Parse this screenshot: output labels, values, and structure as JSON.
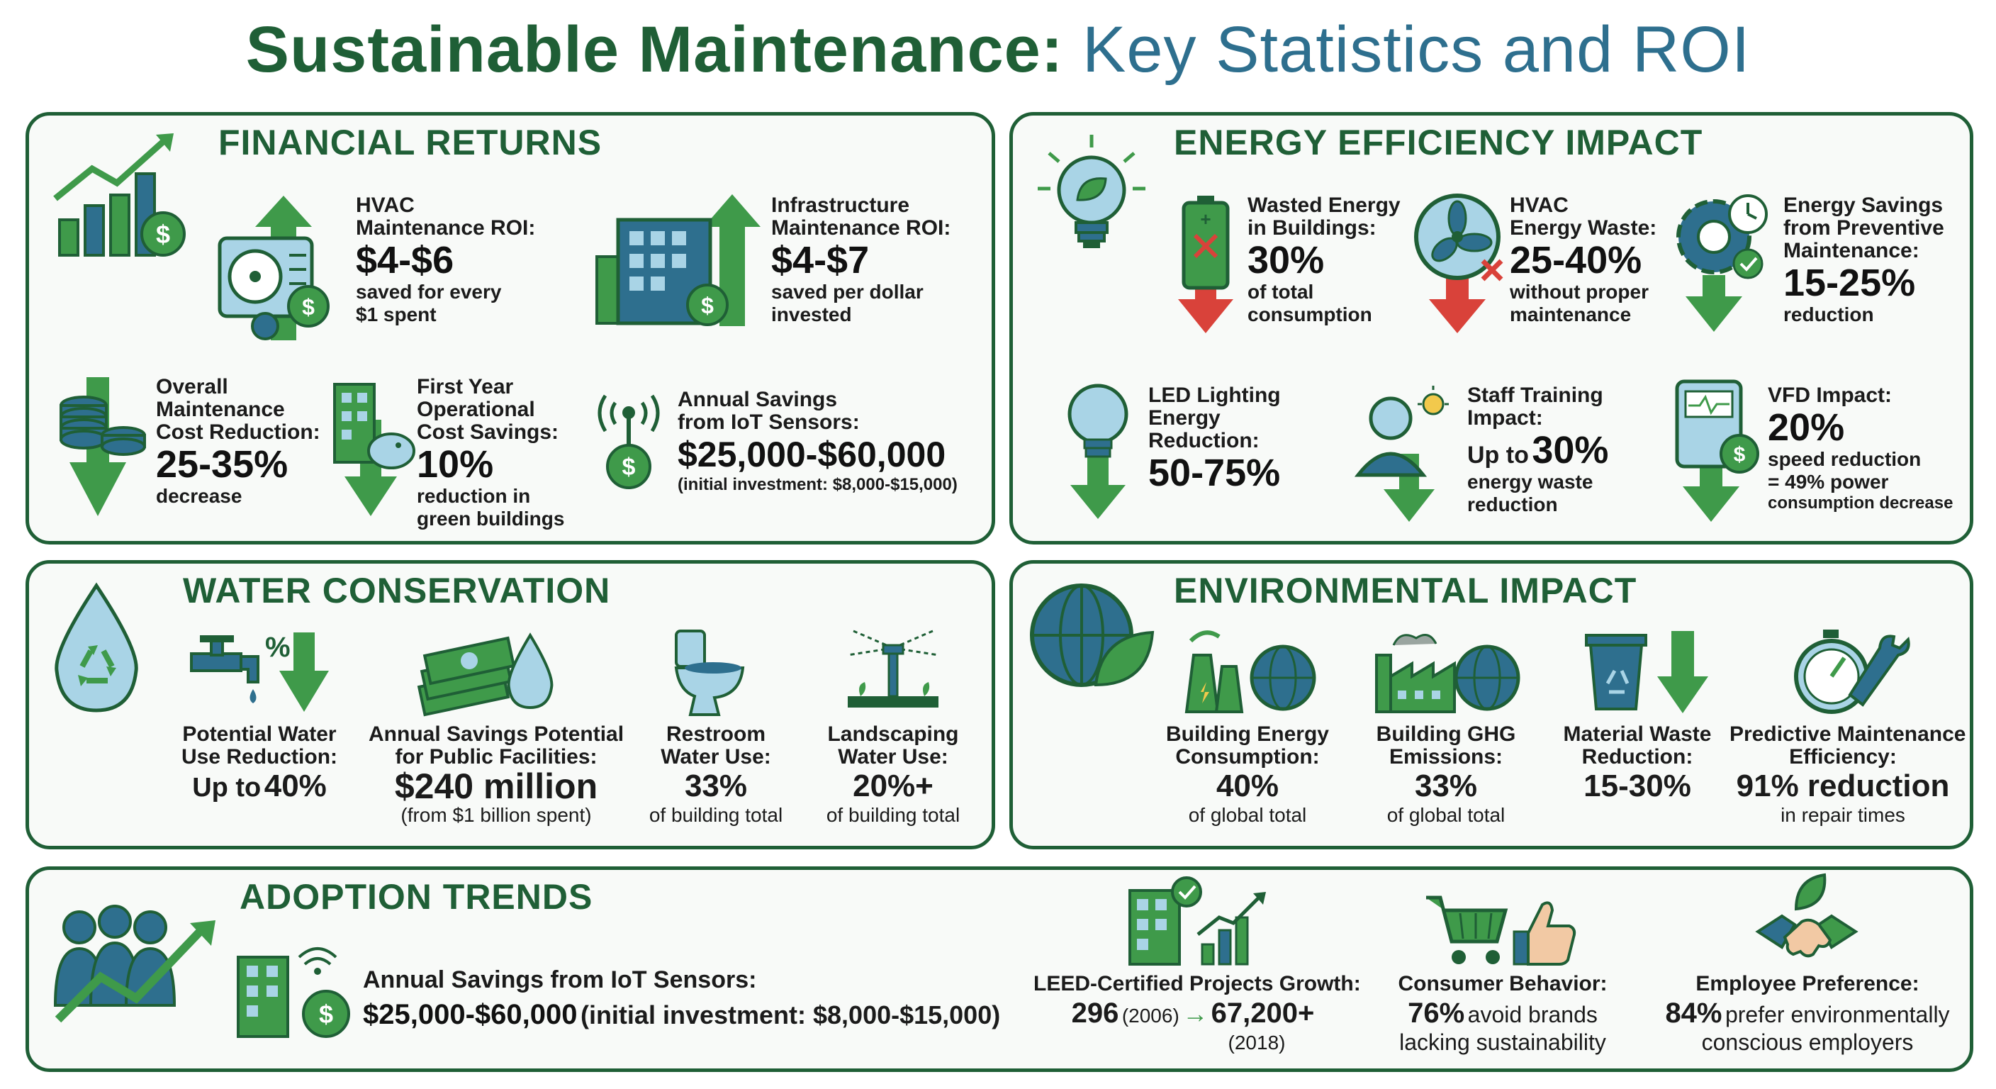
{
  "title": {
    "part1": "Sustainable Maintenance:",
    "part2": "Key Statistics and ROI"
  },
  "financial": {
    "title": "FINANCIAL RETURNS",
    "hvac": {
      "label1": "HVAC",
      "label2": "Maintenance ROI:",
      "value": "$4-$6",
      "sub1": "saved for every",
      "sub2": "$1 spent"
    },
    "infra": {
      "label1": "Infrastructure",
      "label2": "Maintenance ROI:",
      "value": "$4-$7",
      "sub1": "saved per dollar",
      "sub2": "invested"
    },
    "overall": {
      "label1": "Overall",
      "label2": "Maintenance",
      "label3": "Cost Reduction:",
      "value": "25-35%",
      "sub1": "decrease"
    },
    "firstyear": {
      "label1": "First Year",
      "label2": "Operational",
      "label3": "Cost Savings:",
      "value": "10%",
      "sub1": "reduction in",
      "sub2": "green buildings"
    },
    "iot": {
      "label1": "Annual Savings",
      "label2": "from IoT Sensors:",
      "value": "$25,000-$60,000",
      "sub1": "(initial investment: $8,000-$15,000)"
    }
  },
  "energy": {
    "title": "ENERGY EFFICIENCY IMPACT",
    "wasted": {
      "label1": "Wasted Energy",
      "label2": "in Buildings:",
      "value": "30%",
      "sub1": "of total",
      "sub2": "consumption"
    },
    "hvacwaste": {
      "label1": "HVAC",
      "label2": "Energy Waste:",
      "value": "25-40%",
      "sub1": "without proper",
      "sub2": "maintenance"
    },
    "preventive": {
      "label1": "Energy Savings",
      "label2": "from Preventive",
      "label3": "Maintenance:",
      "value": "15-25%",
      "sub1": "reduction"
    },
    "led": {
      "label1": "LED Lighting",
      "label2": "Energy",
      "label3": "Reduction:",
      "value": "50-75%"
    },
    "training": {
      "label1": "Staff Training",
      "label2": "Impact:",
      "prefix": "Up to",
      "value": "30%",
      "sub1": "energy waste",
      "sub2": "reduction"
    },
    "vfd": {
      "label1": "VFD Impact:",
      "value": "20%",
      "sub1": "speed reduction",
      "sub2": "= 49% power",
      "sub3": "consumption decrease"
    }
  },
  "water": {
    "title": "WATER CONSERVATION",
    "potential": {
      "label1": "Potential Water",
      "label2": "Use Reduction:",
      "prefix": "Up to",
      "value": "40%"
    },
    "public": {
      "label1": "Annual Savings Potential",
      "label2": "for Public Facilities:",
      "value": "$240 million",
      "sub1": "(from $1 billion spent)"
    },
    "restroom": {
      "label1": "Restroom",
      "label2": "Water Use:",
      "value": "33%",
      "sub1": "of building total"
    },
    "landscape": {
      "label1": "Landscaping",
      "label2": "Water Use:",
      "value": "20%+",
      "sub1": "of building total"
    }
  },
  "environment": {
    "title": "ENVIRONMENTAL IMPACT",
    "energycons": {
      "label1": "Building Energy",
      "label2": "Consumption:",
      "value": "40%",
      "sub1": "of global total"
    },
    "ghg": {
      "label1": "Building GHG",
      "label2": "Emissions:",
      "value": "33%",
      "sub1": "of global total"
    },
    "material": {
      "label1": "Material Waste",
      "label2": "Reduction:",
      "value": "15-30%"
    },
    "predictive": {
      "label1": "Predictive Maintenance",
      "label2": "Efficiency:",
      "value": "91% reduction",
      "sub1": "in repair times"
    }
  },
  "adoption": {
    "title": "ADOPTION TRENDS",
    "iot": {
      "label": "Annual Savings from IoT Sensors:",
      "value": "$25,000-$60,000",
      "note": "(initial investment: $8,000-$15,000)"
    },
    "leed": {
      "label": "LEED-Certified Projects Growth:",
      "v1": "296",
      "y1": "(2006)",
      "arrow": "→",
      "v2": "67,200+",
      "y2": "(2018)"
    },
    "consumer": {
      "label": "Consumer Behavior:",
      "value": "76%",
      "sub1": "avoid brands",
      "sub2": "lacking sustainability"
    },
    "employee": {
      "label": "Employee Preference:",
      "value": "84%",
      "sub1": "prefer environmentally",
      "sub2": "conscious employers"
    }
  },
  "colors": {
    "dark_green": "#1f5f36",
    "green": "#3f9a4a",
    "teal": "#2e6f8e",
    "red": "#d9423a",
    "light_blue": "#a9d4e6"
  }
}
